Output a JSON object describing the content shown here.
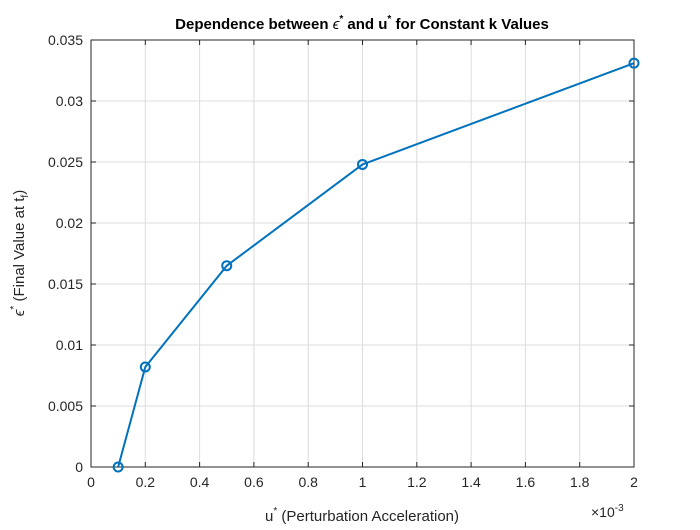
{
  "chart_data": {
    "type": "line",
    "title_parts": [
      "Dependence between ",
      "ϵ",
      "*",
      " and u",
      "*",
      " for Constant k Values"
    ],
    "xlabel_parts": [
      "u",
      "*",
      " (Perturbation Acceleration)"
    ],
    "ylabel_parts": [
      "ϵ",
      "*",
      " (Final Value at t",
      "f",
      ")"
    ],
    "x_exponent_label": [
      "×10",
      "-3"
    ],
    "x_scale_factor": 0.001,
    "xlim": [
      0,
      0.002
    ],
    "ylim": [
      0,
      0.035
    ],
    "x_ticks": [
      0,
      0.0002,
      0.0004,
      0.0006,
      0.0008,
      0.001,
      0.0012,
      0.0014,
      0.0016,
      0.0018,
      0.002
    ],
    "x_tick_labels": [
      "0",
      "0.2",
      "0.4",
      "0.6",
      "0.8",
      "1",
      "1.2",
      "1.4",
      "1.6",
      "1.8",
      "2"
    ],
    "y_ticks": [
      0,
      0.005,
      0.01,
      0.015,
      0.02,
      0.025,
      0.03,
      0.035
    ],
    "y_tick_labels": [
      "0",
      "0.005",
      "0.01",
      "0.015",
      "0.02",
      "0.025",
      "0.03",
      "0.035"
    ],
    "grid": true,
    "series": [
      {
        "marker": "circle",
        "color": "#0072BD",
        "x": [
          0.0001,
          0.0002,
          0.0005,
          0.001,
          0.002
        ],
        "y": [
          0.0,
          0.0082,
          0.0165,
          0.0248,
          0.0331
        ]
      }
    ]
  }
}
